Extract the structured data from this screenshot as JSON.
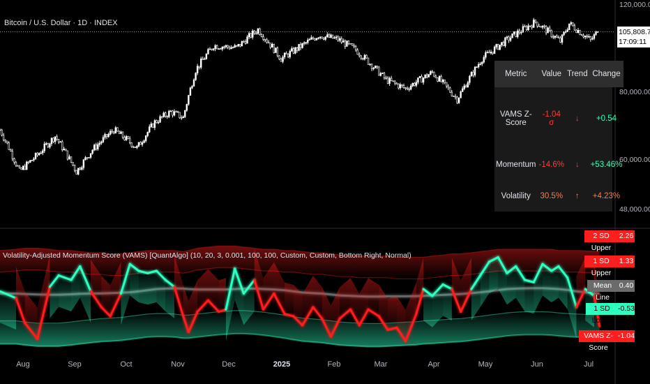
{
  "header": {
    "symbol_title": "Bitcoin / U.S. Dollar · 1D · INDEX",
    "indicator_title": "Volatility-Adjusted Momentum Score (VAMS) [QuantAlgo] (10, 20, 3, 0.001, 100, 100, Custom, Custom, Bottom Right, Normal)"
  },
  "price_axis": {
    "ticks": [
      "120,000.00",
      "80,000.00",
      "60,000.00",
      "48,000.00"
    ],
    "last_price": "105,808.79",
    "countdown": "17:09:11"
  },
  "time_axis": {
    "labels": [
      "Aug",
      "Sep",
      "Oct",
      "Nov",
      "Dec",
      "2025",
      "Feb",
      "Mar",
      "Apr",
      "May",
      "Jun",
      "Jul"
    ]
  },
  "metrics_table": {
    "headers": [
      "Metric",
      "Value",
      "Trend",
      "Change"
    ],
    "rows": [
      {
        "metric": "VAMS Z-Score",
        "value": "-1.04 σ",
        "trend": "↓",
        "change": "+0.54",
        "value_color": "#ff3b3b",
        "trend_color": "#ff3b3b",
        "change_color": "#3dffc0"
      },
      {
        "metric": "Momentum",
        "value": "-14.6%",
        "trend": "↓",
        "change": "+53.46%",
        "value_color": "#ff3b3b",
        "trend_color": "#ff3b3b",
        "change_color": "#3dffc0"
      },
      {
        "metric": "Volatility",
        "value": "30.5%",
        "trend": "↑",
        "change": "+4.23%",
        "value_color": "#ff7a4a",
        "trend_color": "#ff7a4a",
        "change_color": "#ff7a4a"
      }
    ]
  },
  "indicator_levels": [
    {
      "label": "2 SD Upper",
      "value": "2.26",
      "color": "#ff1e1e"
    },
    {
      "label": "1 SD Upper",
      "value": "1.33",
      "color": "#ff1e1e"
    },
    {
      "label": "Mean Line",
      "value": "0.40",
      "color": "#6b6b6b"
    },
    {
      "label": "1 SD Lower",
      "value": "-0.53",
      "color": "#2dffc0"
    },
    {
      "label": "VAMS Z-Score",
      "value": "-1.04",
      "color": "#ff1e1e"
    }
  ],
  "colors": {
    "bull": "#2dffc0",
    "bear": "#ff1e1e",
    "mean": "#9a9a9a",
    "candle": "#ffffff"
  },
  "chart_data": [
    {
      "type": "candlestick",
      "title": "Bitcoin / U.S. Dollar · 1D · INDEX",
      "x_range": [
        "2024-07-25",
        "2025-07-05"
      ],
      "y_scale": "log",
      "ylim": [
        45000,
        120000
      ],
      "x": [
        "2024-07-25",
        "2024-08-05",
        "2024-08-15",
        "2024-08-25",
        "2024-09-06",
        "2024-09-15",
        "2024-09-27",
        "2024-10-10",
        "2024-10-20",
        "2024-10-29",
        "2024-11-05",
        "2024-11-12",
        "2024-11-22",
        "2024-12-05",
        "2024-12-17",
        "2024-12-30",
        "2025-01-07",
        "2025-01-20",
        "2025-01-31",
        "2025-02-10",
        "2025-02-27",
        "2025-03-10",
        "2025-03-25",
        "2025-04-08",
        "2025-04-22",
        "2025-05-08",
        "2025-05-22",
        "2025-06-05",
        "2025-06-10",
        "2025-06-22",
        "2025-06-26"
      ],
      "close": [
        66000,
        54000,
        58500,
        64000,
        54000,
        60000,
        66000,
        60500,
        68500,
        72000,
        70000,
        88000,
        99000,
        98000,
        107000,
        93000,
        97000,
        104000,
        102000,
        97000,
        84000,
        80500,
        87000,
        76500,
        93000,
        103000,
        111000,
        101000,
        110000,
        101500,
        105809
      ],
      "last_price": 105808.79
    },
    {
      "type": "line",
      "title": "Volatility-Adjusted Momentum Score (VAMS) [QuantAlgo]",
      "ylim": [
        -2.2,
        3.0
      ],
      "x": [
        "2024-07-25",
        "2024-08-03",
        "2024-08-08",
        "2024-08-15",
        "2024-08-22",
        "2024-08-27",
        "2024-09-03",
        "2024-09-08",
        "2024-09-14",
        "2024-09-20",
        "2024-09-25",
        "2024-10-01",
        "2024-10-06",
        "2024-10-11",
        "2024-10-16",
        "2024-10-21",
        "2024-10-26",
        "2024-10-31",
        "2024-11-05",
        "2024-11-08",
        "2024-11-13",
        "2024-11-19",
        "2024-11-25",
        "2024-11-29",
        "2024-12-04",
        "2024-12-09",
        "2024-12-15",
        "2024-12-20",
        "2024-12-26",
        "2025-01-01",
        "2025-01-06",
        "2025-01-11",
        "2025-01-17",
        "2025-01-22",
        "2025-01-27",
        "2025-02-01",
        "2025-02-07",
        "2025-02-12",
        "2025-02-17",
        "2025-02-23",
        "2025-02-28",
        "2025-03-05",
        "2025-03-10",
        "2025-03-16",
        "2025-03-20",
        "2025-03-25",
        "2025-03-31",
        "2025-04-05",
        "2025-04-10",
        "2025-04-16",
        "2025-04-21",
        "2025-04-26",
        "2025-05-01",
        "2025-05-06",
        "2025-05-11",
        "2025-05-16",
        "2025-05-21",
        "2025-05-26",
        "2025-05-31",
        "2025-06-04",
        "2025-06-09",
        "2025-06-14",
        "2025-06-19",
        "2025-06-24",
        "2025-06-27"
      ],
      "series": [
        {
          "name": "VAMS Z-Score",
          "values": [
            0.5,
            0.2,
            -0.9,
            -1.6,
            0.7,
            1.2,
            1.0,
            1.6,
            0.5,
            -0.2,
            -0.6,
            0.4,
            1.7,
            1.4,
            1.3,
            1.4,
            1.0,
            0.7,
            -0.6,
            -1.3,
            -0.4,
            0.1,
            -0.4,
            -0.3,
            1.5,
            0.4,
            1.0,
            -0.3,
            0.4,
            -0.5,
            -0.6,
            -1.0,
            -0.2,
            -0.7,
            -1.5,
            -0.7,
            -0.3,
            -1.0,
            -0.3,
            -0.6,
            -1.2,
            -1.1,
            -1.7,
            -0.5,
            0.6,
            0.3,
            0.8,
            0.6,
            -0.4,
            0.6,
            1.2,
            1.8,
            2.0,
            1.3,
            1.6,
            1.0,
            0.9,
            1.7,
            1.4,
            1.6,
            1.1,
            -0.2,
            0.6,
            0.3,
            -1.04
          ]
        },
        {
          "name": "2 SD Upper",
          "values": [
            2.3,
            2.35,
            2.4,
            2.4,
            2.35,
            2.3,
            2.3,
            2.25,
            2.2,
            2.2,
            2.15,
            2.15,
            2.2,
            2.25,
            2.3,
            2.3,
            2.3,
            2.3,
            2.25,
            2.3,
            2.4,
            2.45,
            2.5,
            2.5,
            2.5,
            2.45,
            2.4,
            2.35,
            2.35,
            2.3,
            2.3,
            2.25,
            2.2,
            2.2,
            2.15,
            2.1,
            2.1,
            2.05,
            2.05,
            2.05,
            2.05,
            2.0,
            2.0,
            2.0,
            2.0,
            2.05,
            2.1,
            2.15,
            2.15,
            2.2,
            2.25,
            2.3,
            2.35,
            2.35,
            2.35,
            2.35,
            2.35,
            2.35,
            2.35,
            2.3,
            2.3,
            2.3,
            2.28,
            2.27,
            2.26
          ]
        },
        {
          "name": "Mean Line",
          "values": [
            0.4,
            0.4,
            0.38,
            0.36,
            0.35,
            0.35,
            0.37,
            0.39,
            0.4,
            0.41,
            0.42,
            0.44,
            0.46,
            0.5,
            0.55,
            0.6,
            0.62,
            0.63,
            0.62,
            0.6,
            0.58,
            0.58,
            0.58,
            0.58,
            0.6,
            0.62,
            0.62,
            0.6,
            0.58,
            0.55,
            0.5,
            0.45,
            0.42,
            0.4,
            0.36,
            0.32,
            0.3,
            0.28,
            0.27,
            0.27,
            0.28,
            0.28,
            0.28,
            0.29,
            0.3,
            0.32,
            0.34,
            0.36,
            0.38,
            0.42,
            0.46,
            0.5,
            0.55,
            0.6,
            0.62,
            0.63,
            0.64,
            0.64,
            0.62,
            0.6,
            0.56,
            0.5,
            0.46,
            0.42,
            0.4
          ]
        },
        {
          "name": "1 SD Lower",
          "values": [
            -0.8,
            -0.8,
            -0.85,
            -0.9,
            -0.9,
            -0.9,
            -0.85,
            -0.8,
            -0.75,
            -0.7,
            -0.68,
            -0.65,
            -0.6,
            -0.55,
            -0.5,
            -0.48,
            -0.48,
            -0.5,
            -0.55,
            -0.55,
            -0.5,
            -0.45,
            -0.4,
            -0.38,
            -0.35,
            -0.35,
            -0.38,
            -0.42,
            -0.48,
            -0.55,
            -0.62,
            -0.68,
            -0.72,
            -0.75,
            -0.8,
            -0.85,
            -0.88,
            -0.9,
            -0.92,
            -0.92,
            -0.9,
            -0.88,
            -0.86,
            -0.84,
            -0.8,
            -0.78,
            -0.75,
            -0.72,
            -0.7,
            -0.65,
            -0.6,
            -0.55,
            -0.5,
            -0.45,
            -0.42,
            -0.4,
            -0.4,
            -0.4,
            -0.42,
            -0.45,
            -0.48,
            -0.5,
            -0.52,
            -0.53,
            -0.53
          ]
        }
      ]
    }
  ]
}
